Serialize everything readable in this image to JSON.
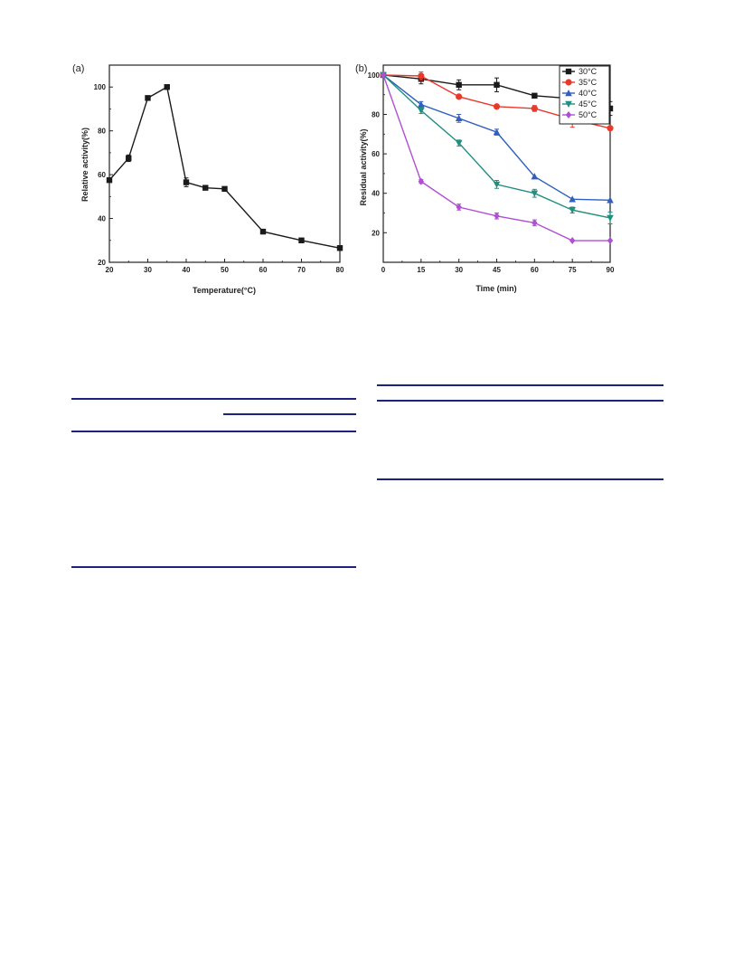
{
  "chart_data": [
    {
      "type": "line",
      "panel_label": "(a)",
      "xlabel": "Temperature(°C)",
      "ylabel": "Relative activity(%)",
      "xlim": [
        20,
        80
      ],
      "ylim": [
        20,
        110
      ],
      "xticks": [
        20,
        30,
        40,
        50,
        60,
        70,
        80
      ],
      "yticks": [
        20,
        40,
        60,
        80,
        100
      ],
      "grid": false,
      "series": [
        {
          "color": "#1a1a1a",
          "marker": "square",
          "x": [
            20,
            25,
            30,
            35,
            40,
            45,
            50,
            60,
            70,
            80
          ],
          "y": [
            57.5,
            67.5,
            95,
            100,
            56.5,
            54,
            53.5,
            34,
            30,
            26.5
          ],
          "err": [
            0,
            1.5,
            0,
            0,
            2,
            0,
            0,
            1,
            1,
            0
          ]
        }
      ]
    },
    {
      "type": "line",
      "panel_label": "(b)",
      "xlabel": "Time (min)",
      "ylabel": "Residual activity(%)",
      "xlim": [
        0,
        90
      ],
      "ylim": [
        5,
        105
      ],
      "xticks": [
        0,
        15,
        30,
        45,
        60,
        75,
        90
      ],
      "yticks": [
        20,
        40,
        60,
        80,
        100
      ],
      "grid": false,
      "legend_position": "top-right",
      "series": [
        {
          "name": "30°C",
          "color": "#1a1a1a",
          "marker": "square",
          "x": [
            0,
            15,
            30,
            45,
            60,
            75,
            90
          ],
          "y": [
            100,
            98,
            95,
            95,
            89.5,
            88,
            83
          ],
          "err": [
            0,
            2.5,
            2.5,
            3.5,
            0,
            0,
            3.5
          ]
        },
        {
          "name": "35°C",
          "color": "#e8392b",
          "marker": "circle",
          "x": [
            0,
            15,
            30,
            45,
            60,
            75,
            90
          ],
          "y": [
            100,
            99.5,
            89,
            84,
            83,
            77.5,
            73
          ],
          "err": [
            0,
            2,
            0,
            0,
            1.5,
            4,
            0
          ]
        },
        {
          "name": "40°C",
          "color": "#2f5fbf",
          "marker": "triangle-up",
          "x": [
            0,
            15,
            30,
            45,
            60,
            75,
            90
          ],
          "y": [
            100,
            85,
            78,
            71,
            48.5,
            37,
            36.5
          ],
          "err": [
            0,
            1.5,
            2,
            1.5,
            0,
            0,
            0
          ]
        },
        {
          "name": "45°C",
          "color": "#1f8f7f",
          "marker": "triangle-down",
          "x": [
            0,
            15,
            30,
            45,
            60,
            75,
            90
          ],
          "y": [
            100,
            82,
            65.5,
            44.5,
            40,
            31.5,
            27.5
          ],
          "err": [
            0,
            1.5,
            1.5,
            2,
            2,
            1.5,
            3
          ]
        },
        {
          "name": "50°C",
          "color": "#b04fd4",
          "marker": "diamond",
          "x": [
            0,
            15,
            30,
            45,
            60,
            75,
            90
          ],
          "y": [
            100,
            46,
            33,
            28.5,
            25,
            16,
            16
          ],
          "err": [
            0,
            1,
            1.5,
            1.5,
            1.5,
            0,
            0
          ]
        }
      ]
    }
  ],
  "colors": {
    "table_rule": "#1a237e"
  }
}
